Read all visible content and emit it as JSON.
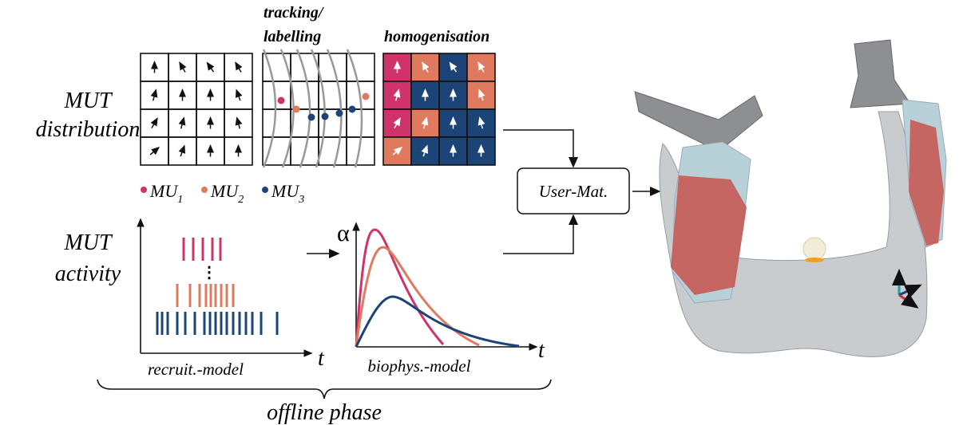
{
  "labels": {
    "mut_distribution": [
      "MUT",
      "distribution"
    ],
    "tracking": [
      "tracking/",
      "labelling"
    ],
    "homogenisation": "homogenisation",
    "mut_activity": [
      "MUT",
      "activity"
    ],
    "alpha": "α",
    "t_recruit": "t",
    "t_biophys": "t",
    "recruit_model": "recruit.-model",
    "biophys_model": "biophys.-model",
    "offline_phase": "offline phase",
    "user_mat": "User-Mat."
  },
  "legend": [
    {
      "label": "MU",
      "sub": "1",
      "color": "#d0336a"
    },
    {
      "label": "MU",
      "sub": "2",
      "color": "#e07a5f"
    },
    {
      "label": "MU",
      "sub": "3",
      "color": "#1d4477"
    }
  ]
}
